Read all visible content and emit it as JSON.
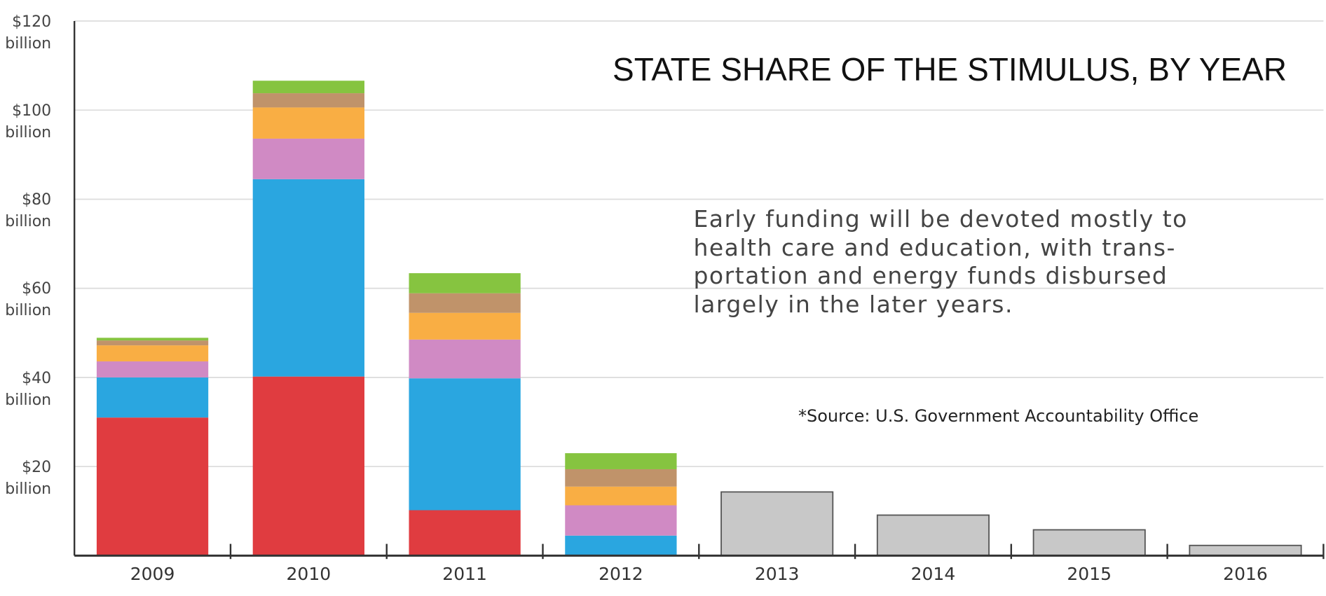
{
  "chart_data": {
    "type": "stacked_bar",
    "title": "STATE SHARE OF THE STIMULUS, BY YEAR",
    "annotation": [
      "Early funding will be devoted mostly to",
      "health care and education, with trans-",
      "portation and energy funds disbursed",
      "largely in the later years."
    ],
    "source": "*Source: U.S. Government Accountability Office",
    "categories": [
      "2009",
      "2010",
      "2011",
      "2012",
      "2013",
      "2014",
      "2015",
      "2016"
    ],
    "series": [
      {
        "color": "#e03c40",
        "values": [
          31,
          40.2,
          10.2,
          0,
          null,
          null,
          null,
          null
        ]
      },
      {
        "color": "#2aa6e0",
        "values": [
          9,
          44.3,
          29.6,
          4.5,
          null,
          null,
          null,
          null
        ]
      },
      {
        "color": "#d08ac4",
        "values": [
          3.6,
          9.1,
          8.7,
          6.8,
          null,
          null,
          null,
          null
        ]
      },
      {
        "color": "#f9ae44",
        "values": [
          3.6,
          7,
          6,
          4.2,
          null,
          null,
          null,
          null
        ]
      },
      {
        "color": "#c0936a",
        "values": [
          1.1,
          3.2,
          4.4,
          3.9,
          null,
          null,
          null,
          null
        ]
      },
      {
        "color": "#86c440",
        "values": [
          0.6,
          2.8,
          4.5,
          3.6,
          null,
          null,
          null,
          null
        ]
      },
      {
        "color": "#c8c8c8",
        "values": [
          null,
          null,
          null,
          null,
          14.3,
          9.1,
          5.8,
          2.3
        ]
      }
    ],
    "ylim": [
      0,
      120
    ],
    "yticks": [
      {
        "value": 20,
        "label": "$20\nbillion"
      },
      {
        "value": 40,
        "label": "$40\nbillion"
      },
      {
        "value": 60,
        "label": "$60\nbillion"
      },
      {
        "value": 80,
        "label": "$80\nbillion"
      },
      {
        "value": 100,
        "label": "$100\nbillion"
      },
      {
        "value": 120,
        "label": "$120\nbillion"
      }
    ],
    "grid": true
  }
}
